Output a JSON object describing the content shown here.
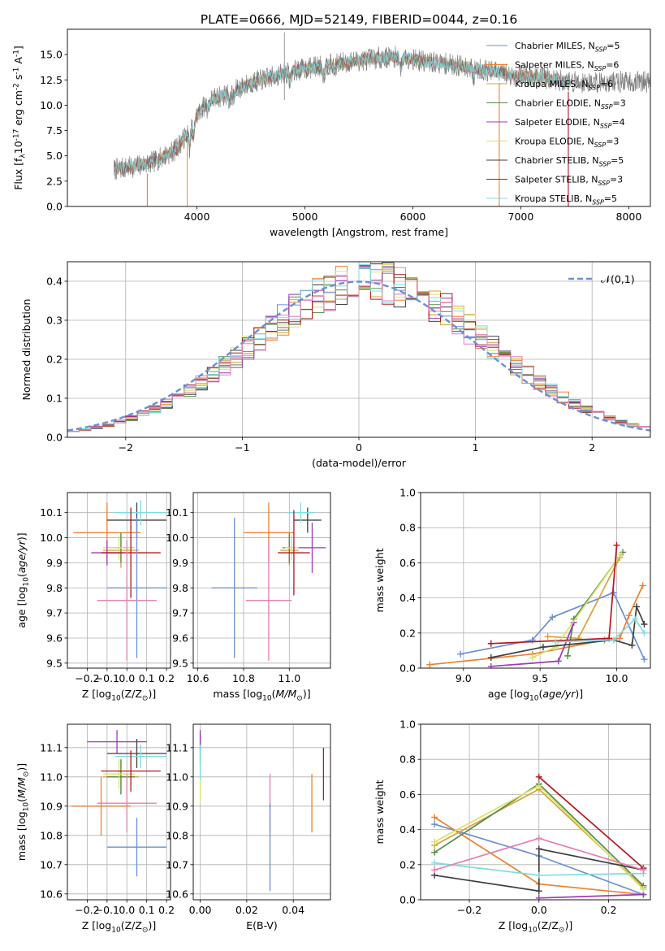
{
  "figure": {
    "title": "PLATE=0666, MJD=52149, FIBERID=0044, z=0.16"
  },
  "palette": [
    "#6b8fd6",
    "#ee7f2d",
    "#d7a13a",
    "#548a4c",
    "#9b3bb5",
    "#d9e26a",
    "#3f3f3f",
    "#b5171e",
    "#7fdbe0",
    "#e57fb0"
  ],
  "chart_data": [
    {
      "id": "spectrum",
      "type": "line",
      "xlabel": "wavelength [Angstrom, rest frame]",
      "ylabel": "Flux [f$_\\lambda$10$^{-17}$ erg cm$^{-2}$ s$^{-1}$ A$^{-1}$]",
      "xlim": [
        2800,
        8200
      ],
      "ylim": [
        0,
        17.5
      ],
      "xticks": [
        4000,
        5000,
        6000,
        7000,
        8000
      ],
      "yticks": [
        0.0,
        2.5,
        5.0,
        7.5,
        10.0,
        12.5,
        15.0
      ],
      "legend_position": "top-right",
      "legend": [
        {
          "label": "Chabrier MILES, N$_{SSP}$=5",
          "color": "#6b8fd6"
        },
        {
          "label": "Salpeter MILES, N$_{SSP}$=6",
          "color": "#ee7f2d"
        },
        {
          "label": "Kroupa MILES, N$_{SSP}$=6",
          "color": "#d7a13a"
        },
        {
          "label": "Chabrier ELODIE, N$_{SSP}$=3",
          "color": "#548a4c"
        },
        {
          "label": "Salpeter ELODIE, N$_{SSP}$=4",
          "color": "#9b3bb5"
        },
        {
          "label": "Kroupa ELODIE, N$_{SSP}$=3",
          "color": "#d9e26a"
        },
        {
          "label": "Chabrier STELIB, N$_{SSP}$=5",
          "color": "#3f3f3f"
        },
        {
          "label": "Salpeter STELIB, N$_{SSP}$=3",
          "color": "#b5171e"
        },
        {
          "label": "Kroupa STELIB, N$_{SSP}$=5",
          "color": "#7fdbe0"
        }
      ],
      "continuum": {
        "x": [
          3200,
          3400,
          3600,
          3800,
          3900,
          4000,
          4100,
          4300,
          4500,
          4700,
          4900,
          5100,
          5300,
          5500,
          5700,
          5900,
          6100,
          6300,
          6500,
          6700,
          6900,
          7100,
          7300,
          7450
        ],
        "y": [
          3.6,
          3.9,
          4.4,
          5.6,
          7.0,
          9.0,
          10.4,
          11.2,
          12.2,
          12.8,
          13.4,
          13.8,
          14.1,
          14.4,
          14.7,
          14.8,
          14.3,
          14.1,
          13.8,
          13.4,
          13.0,
          12.8,
          12.6,
          12.3
        ]
      }
    },
    {
      "id": "residuals",
      "type": "line",
      "xlabel": "(data-model)/error",
      "ylabel": "Normed distribution",
      "xlim": [
        -2.5,
        2.5
      ],
      "ylim": [
        0,
        0.45
      ],
      "xticks": [
        -2,
        -1,
        0,
        1,
        2
      ],
      "yticks": [
        0.0,
        0.1,
        0.2,
        0.3,
        0.4
      ],
      "legend_position": "top-right",
      "gaussian": {
        "label": "$\\mathcal{N}(0,1)$",
        "mu": 0,
        "sigma": 1,
        "color": "#6b8fd6"
      },
      "hist_edges": [
        -2.5,
        -2.4,
        -2.3,
        -2.2,
        -2.1,
        -2.0,
        -1.9,
        -1.8,
        -1.7,
        -1.6,
        -1.5,
        -1.4,
        -1.3,
        -1.2,
        -1.1,
        -1.0,
        -0.9,
        -0.8,
        -0.7,
        -0.6,
        -0.5,
        -0.4,
        -0.3,
        -0.2,
        -0.1,
        0.0,
        0.1,
        0.2,
        0.3,
        0.4,
        0.5,
        0.6,
        0.7,
        0.8,
        0.9,
        1.0,
        1.1,
        1.2,
        1.3,
        1.4,
        1.5,
        1.6,
        1.7,
        1.8,
        1.9,
        2.0,
        2.1,
        2.2,
        2.3,
        2.4,
        2.5
      ]
    },
    {
      "id": "age-vs-Z",
      "type": "scatter",
      "xlabel": "Z [log$_{10}$(Z/Z$_\\odot$)]",
      "ylabel": "age  [log$_{10}$($age/yr$)]",
      "xlim": [
        -0.3,
        0.22
      ],
      "ylim": [
        9.48,
        10.18
      ],
      "xticks": [
        -0.2,
        -0.1,
        0.0,
        0.1,
        0.2
      ],
      "yticks": [
        9.5,
        9.6,
        9.7,
        9.8,
        9.9,
        10.0,
        10.1
      ]
    },
    {
      "id": "age-vs-mass",
      "type": "scatter",
      "xlabel": "mass [log$_{10}$($M/M_\\odot$)]",
      "xlim": [
        10.58,
        11.18
      ],
      "ylim": [
        9.48,
        10.18
      ],
      "xticks": [
        10.6,
        10.8,
        11.0
      ],
      "yticks": [
        9.5,
        9.6,
        9.7,
        9.8,
        9.9,
        10.0,
        10.1
      ]
    },
    {
      "id": "weight-vs-age",
      "type": "line",
      "xlabel": "age  [log$_{10}$($age/yr$)]",
      "ylabel": "mass weight",
      "xlim": [
        8.72,
        10.22
      ],
      "ylim": [
        0,
        1.0
      ],
      "xticks": [
        9.0,
        9.5,
        10.0
      ],
      "yticks": [
        0.0,
        0.2,
        0.4,
        0.6,
        0.8,
        1.0
      ],
      "series": [
        {
          "color": "#6b8fd6",
          "x": [
            8.98,
            9.45,
            9.58,
            9.98,
            10.18
          ],
          "y": [
            0.08,
            0.16,
            0.29,
            0.43,
            0.05
          ]
        },
        {
          "color": "#ee7f2d",
          "x": [
            8.78,
            9.45,
            9.92,
            10.02,
            10.08,
            10.17
          ],
          "y": [
            0.02,
            0.08,
            0.16,
            0.17,
            0.3,
            0.47
          ]
        },
        {
          "color": "#d7a13a",
          "x": [
            9.55,
            9.75,
            10.02
          ],
          "y": [
            0.18,
            0.17,
            0.63
          ]
        },
        {
          "color": "#548a4c",
          "x": [
            9.68,
            9.72,
            10.04
          ],
          "y": [
            0.07,
            0.28,
            0.66
          ]
        },
        {
          "color": "#9b3bb5",
          "x": [
            9.18,
            9.62,
            9.72
          ],
          "y": [
            0.01,
            0.04,
            0.26
          ]
        },
        {
          "color": "#d9e26a",
          "x": [
            9.45,
            9.6,
            10.03
          ],
          "y": [
            0.06,
            0.12,
            0.65
          ]
        },
        {
          "color": "#3f3f3f",
          "x": [
            9.18,
            9.52,
            9.98,
            10.1,
            10.13,
            10.18
          ],
          "y": [
            0.06,
            0.12,
            0.16,
            0.13,
            0.35,
            0.25
          ]
        },
        {
          "color": "#b5171e",
          "x": [
            9.18,
            9.95,
            10.0
          ],
          "y": [
            0.14,
            0.17,
            0.7
          ]
        },
        {
          "color": "#7fdbe0",
          "x": [
            9.6,
            9.98,
            10.12,
            10.18
          ],
          "y": [
            0.15,
            0.16,
            0.28,
            0.2
          ]
        }
      ]
    },
    {
      "id": "mass-vs-Z",
      "type": "scatter",
      "xlabel": "Z [log$_{10}$(Z/Z$_\\odot$)]",
      "ylabel": "mass [log$_{10}$($M/M_\\odot$)]",
      "xlim": [
        -0.3,
        0.22
      ],
      "ylim": [
        10.58,
        11.18
      ],
      "xticks": [
        -0.2,
        -0.1,
        0.0,
        0.1,
        0.2
      ],
      "yticks": [
        10.6,
        10.7,
        10.8,
        10.9,
        11.0,
        11.1
      ]
    },
    {
      "id": "mass-vs-EBV",
      "type": "scatter",
      "xlabel": "E(B-V)",
      "xlim": [
        -0.003,
        0.056
      ],
      "ylim": [
        10.58,
        11.18
      ],
      "xticks": [
        0.0,
        0.02,
        0.04
      ],
      "yticks": [
        10.6,
        10.7,
        10.8,
        10.9,
        11.0,
        11.1
      ]
    },
    {
      "id": "weight-vs-Z",
      "type": "line",
      "xlabel": "Z [log$_{10}$(Z/Z$_\\odot$)]",
      "ylabel": "mass weight",
      "xlim": [
        -0.34,
        0.32
      ],
      "ylim": [
        0,
        1.0
      ],
      "xticks": [
        -0.2,
        0.0,
        0.2
      ],
      "yticks": [
        0.0,
        0.2,
        0.4,
        0.6,
        0.8,
        1.0
      ],
      "series": [
        {
          "color": "#6b8fd6",
          "x": [
            -0.3,
            0.0,
            0.3
          ],
          "y": [
            0.43,
            0.25,
            0.03
          ]
        },
        {
          "color": "#ee7f2d",
          "x": [
            -0.3,
            0.0,
            0.3
          ],
          "y": [
            0.47,
            0.09,
            0.03
          ]
        },
        {
          "color": "#d7a13a",
          "x": [
            -0.3,
            0.0,
            0.3
          ],
          "y": [
            0.31,
            0.63,
            0.07
          ]
        },
        {
          "color": "#548a4c",
          "x": [
            -0.3,
            0.0,
            0.3
          ],
          "y": [
            0.27,
            0.66,
            0.08
          ]
        },
        {
          "color": "#9b3bb5",
          "x": [
            0.0,
            0.3
          ],
          "y": [
            0.01,
            0.03
          ]
        },
        {
          "color": "#d9e26a",
          "x": [
            -0.3,
            0.0,
            0.3
          ],
          "y": [
            0.33,
            0.65,
            0.06
          ]
        },
        {
          "color": "#3f3f3f",
          "x": [
            -0.3,
            0.0,
            0.0,
            0.3
          ],
          "y": [
            0.14,
            0.05,
            0.29,
            0.17
          ]
        },
        {
          "color": "#b5171e",
          "x": [
            0.0,
            0.3
          ],
          "y": [
            0.7,
            0.18
          ]
        },
        {
          "color": "#7fdbe0",
          "x": [
            -0.3,
            0.0,
            0.3
          ],
          "y": [
            0.21,
            0.14,
            0.15
          ]
        },
        {
          "color": "#e57fb0",
          "x": [
            -0.3,
            0.0,
            0.3
          ],
          "y": [
            0.17,
            0.35,
            0.17
          ]
        }
      ]
    }
  ],
  "errorbars": {
    "age_vs_Z": [
      {
        "color": "#ee7f2d",
        "x": -0.1,
        "xerr": 0.17,
        "y": 10.02,
        "yerr": 0.12
      },
      {
        "color": "#3f3f3f",
        "x": 0.05,
        "xerr": 0.15,
        "y": 10.07,
        "yerr": 0.07
      },
      {
        "color": "#7fdbe0",
        "x": 0.07,
        "xerr": 0.13,
        "y": 10.1,
        "yerr": 0.05
      },
      {
        "color": "#d7a13a",
        "x": -0.03,
        "xerr": 0.09,
        "y": 9.95,
        "yerr": 0.07
      },
      {
        "color": "#548a4c",
        "x": -0.03,
        "xerr": 0.07,
        "y": 9.96,
        "yerr": 0.06
      },
      {
        "color": "#d9e26a",
        "x": -0.04,
        "xerr": 0.08,
        "y": 9.96,
        "yerr": 0.05
      },
      {
        "color": "#9b3bb5",
        "x": -0.1,
        "xerr": 0.08,
        "y": 9.94,
        "yerr": 0.05
      },
      {
        "color": "#b5171e",
        "x": 0.02,
        "xerr": 0.15,
        "y": 9.94,
        "yerr": 0.18
      },
      {
        "color": "#6b8fd6",
        "x": 0.05,
        "xerr": 0.15,
        "y": 9.8,
        "yerr": 0.28
      },
      {
        "color": "#e57fb0",
        "x": 0.0,
        "xerr": 0.15,
        "y": 9.75,
        "yerr": 0.24
      }
    ],
    "age_vs_mass": [
      {
        "color": "#ee7f2d",
        "x": 10.91,
        "xerr": 0.11,
        "y": 10.02,
        "yerr": 0.12
      },
      {
        "color": "#3f3f3f",
        "x": 11.08,
        "xerr": 0.06,
        "y": 10.07,
        "yerr": 0.05
      },
      {
        "color": "#7fdbe0",
        "x": 11.05,
        "xerr": 0.06,
        "y": 10.1,
        "yerr": 0.04
      },
      {
        "color": "#d7a13a",
        "x": 11.0,
        "xerr": 0.04,
        "y": 9.95,
        "yerr": 0.06
      },
      {
        "color": "#548a4c",
        "x": 11.0,
        "xerr": 0.03,
        "y": 9.96,
        "yerr": 0.06
      },
      {
        "color": "#d9e26a",
        "x": 11.01,
        "xerr": 0.03,
        "y": 9.96,
        "yerr": 0.05
      },
      {
        "color": "#9b3bb5",
        "x": 11.1,
        "xerr": 0.06,
        "y": 9.96,
        "yerr": 0.1
      },
      {
        "color": "#b5171e",
        "x": 11.02,
        "xerr": 0.07,
        "y": 9.94,
        "yerr": 0.17
      },
      {
        "color": "#6b8fd6",
        "x": 10.76,
        "xerr": 0.1,
        "y": 9.8,
        "yerr": 0.28
      },
      {
        "color": "#e57fb0",
        "x": 10.91,
        "xerr": 0.1,
        "y": 9.75,
        "yerr": 0.24
      }
    ],
    "mass_vs_Z": [
      {
        "color": "#9b3bb5",
        "x": -0.05,
        "xerr": 0.15,
        "y": 11.12,
        "yerr": 0.04
      },
      {
        "color": "#3f3f3f",
        "x": 0.05,
        "xerr": 0.15,
        "y": 11.08,
        "yerr": 0.05
      },
      {
        "color": "#7fdbe0",
        "x": 0.07,
        "xerr": 0.13,
        "y": 11.07,
        "yerr": 0.04
      },
      {
        "color": "#d7a13a",
        "x": -0.03,
        "xerr": 0.09,
        "y": 11.0,
        "yerr": 0.06
      },
      {
        "color": "#548a4c",
        "x": -0.03,
        "xerr": 0.07,
        "y": 11.0,
        "yerr": 0.06
      },
      {
        "color": "#d9e26a",
        "x": -0.04,
        "xerr": 0.08,
        "y": 11.01,
        "yerr": 0.05
      },
      {
        "color": "#b5171e",
        "x": 0.02,
        "xerr": 0.15,
        "y": 11.02,
        "yerr": 0.07
      },
      {
        "color": "#e57fb0",
        "x": 0.0,
        "xerr": 0.15,
        "y": 10.91,
        "yerr": 0.1
      },
      {
        "color": "#ee7f2d",
        "x": -0.13,
        "xerr": 0.15,
        "y": 10.9,
        "yerr": 0.1
      },
      {
        "color": "#6b8fd6",
        "x": 0.05,
        "xerr": 0.15,
        "y": 10.76,
        "yerr": 0.1
      }
    ],
    "mass_vs_EBV": [
      {
        "color": "#3f3f3f",
        "x": 0.0,
        "xerr": 0.0,
        "y": 11.1,
        "yerr": 0.05
      },
      {
        "color": "#9b3bb5",
        "x": 0.0,
        "xerr": 0.0,
        "y": 11.12,
        "yerr": 0.04
      },
      {
        "color": "#d9e26a",
        "x": 0.0,
        "xerr": 0.0,
        "y": 11.0,
        "yerr": 0.09
      },
      {
        "color": "#7fdbe0",
        "x": 0.0,
        "xerr": 0.0,
        "y": 11.05,
        "yerr": 0.06
      },
      {
        "color": "#e57fb0",
        "x": 0.03,
        "xerr": 0.0,
        "y": 10.91,
        "yerr": 0.1
      },
      {
        "color": "#6b8fd6",
        "x": 0.03,
        "xerr": 0.0,
        "y": 10.76,
        "yerr": 0.15
      },
      {
        "color": "#ee7f2d",
        "x": 0.048,
        "xerr": 0.0,
        "y": 10.91,
        "yerr": 0.1
      },
      {
        "color": "#b5171e",
        "x": 0.053,
        "xerr": 0.0,
        "y": 11.01,
        "yerr": 0.09
      }
    ]
  }
}
